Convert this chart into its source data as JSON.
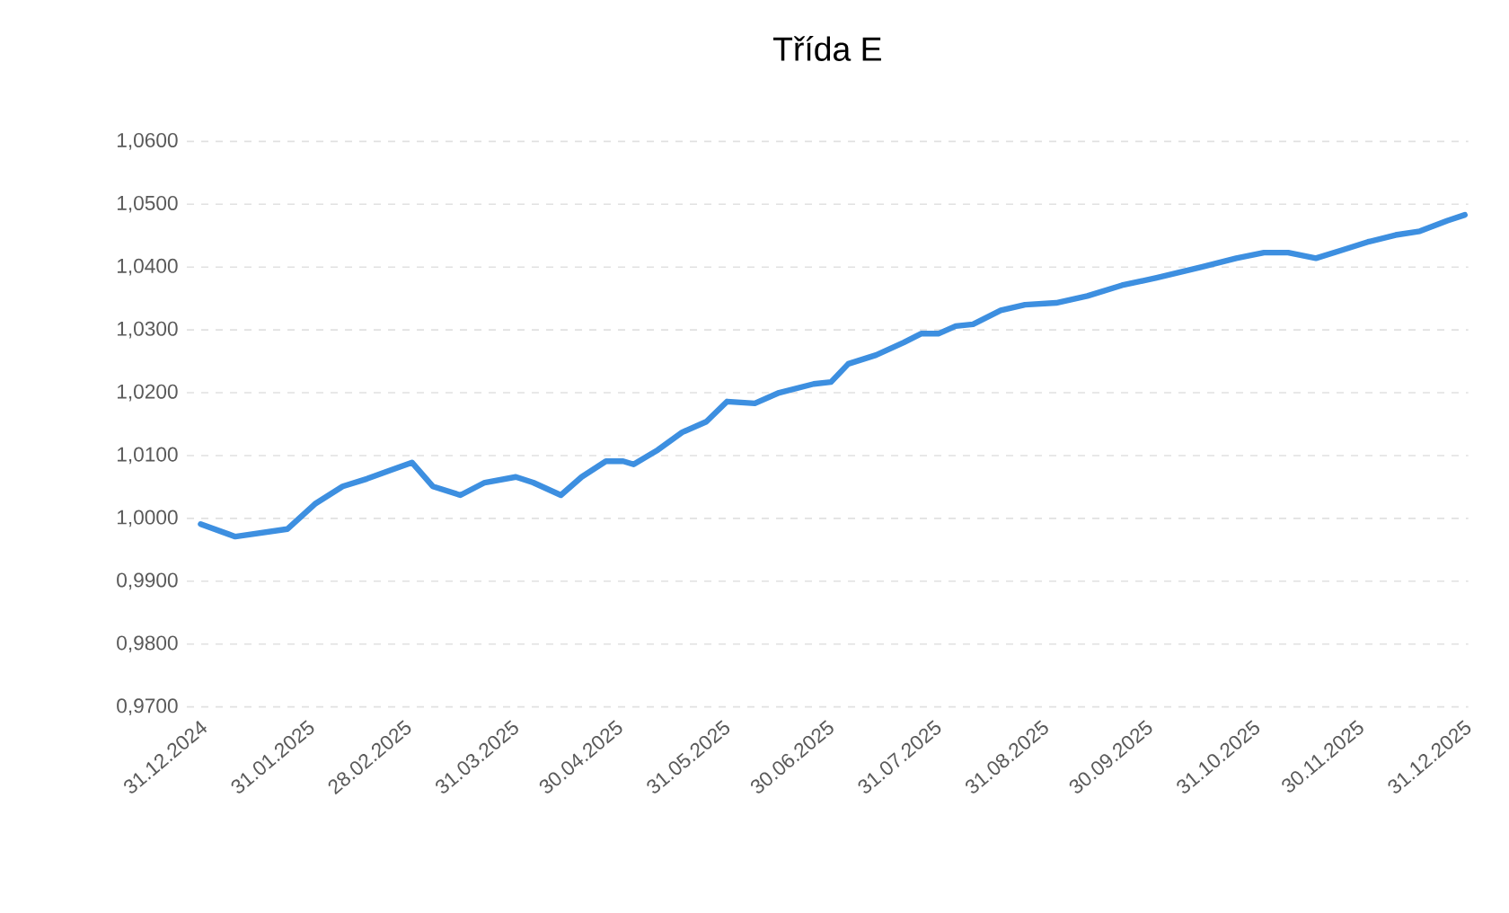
{
  "chart_data": {
    "type": "line",
    "title": "Třída E",
    "x": [
      "2024-12-31",
      "2025-01-10",
      "2025-01-25",
      "2025-02-02",
      "2025-02-10",
      "2025-02-17",
      "2025-02-24",
      "2025-03-02",
      "2025-03-08",
      "2025-03-16",
      "2025-03-23",
      "2025-04-01",
      "2025-04-06",
      "2025-04-14",
      "2025-04-20",
      "2025-04-27",
      "2025-05-02",
      "2025-05-05",
      "2025-05-12",
      "2025-05-19",
      "2025-05-26",
      "2025-06-01",
      "2025-06-09",
      "2025-06-16",
      "2025-06-26",
      "2025-07-01",
      "2025-07-06",
      "2025-07-14",
      "2025-07-22",
      "2025-07-27",
      "2025-08-01",
      "2025-08-06",
      "2025-08-11",
      "2025-08-19",
      "2025-08-26",
      "2025-09-04",
      "2025-09-13",
      "2025-09-23",
      "2025-10-03",
      "2025-10-16",
      "2025-10-26",
      "2025-11-03",
      "2025-11-10",
      "2025-11-18",
      "2025-11-25",
      "2025-12-03",
      "2025-12-11",
      "2025-12-18",
      "2025-12-26",
      "2025-12-31"
    ],
    "series": [
      {
        "color": "#3d8fe0",
        "values": [
          0.9991,
          0.9971,
          0.9983,
          1.0023,
          1.0051,
          1.0063,
          1.0077,
          1.0089,
          1.0051,
          1.0037,
          1.0057,
          1.0066,
          1.0057,
          1.0037,
          1.0066,
          1.0091,
          1.0091,
          1.0086,
          1.0109,
          1.0137,
          1.0154,
          1.0186,
          1.0183,
          1.02,
          1.0214,
          1.0217,
          1.0246,
          1.026,
          1.028,
          1.0294,
          1.0294,
          1.0306,
          1.0309,
          1.0331,
          1.034,
          1.0343,
          1.0354,
          1.0371,
          1.0383,
          1.04,
          1.0414,
          1.0423,
          1.0423,
          1.0414,
          1.0426,
          1.044,
          1.0451,
          1.0457,
          1.0474,
          1.0483
        ]
      }
    ],
    "xlim": [
      "2024-12-27",
      "2026-01-01"
    ],
    "xticks": [
      {
        "value": "2024-12-31",
        "label": "31.12.2024"
      },
      {
        "value": "2025-01-31",
        "label": "31.01.2025"
      },
      {
        "value": "2025-02-28",
        "label": "28.02.2025"
      },
      {
        "value": "2025-03-31",
        "label": "31.03.2025"
      },
      {
        "value": "2025-04-30",
        "label": "30.04.2025"
      },
      {
        "value": "2025-05-31",
        "label": "31.05.2025"
      },
      {
        "value": "2025-06-30",
        "label": "30.06.2025"
      },
      {
        "value": "2025-07-31",
        "label": "31.07.2025"
      },
      {
        "value": "2025-08-31",
        "label": "31.08.2025"
      },
      {
        "value": "2025-09-30",
        "label": "30.09.2025"
      },
      {
        "value": "2025-10-31",
        "label": "31.10.2025"
      },
      {
        "value": "2025-11-30",
        "label": "30.11.2025"
      },
      {
        "value": "2025-12-31",
        "label": "31.12.2025"
      }
    ],
    "ylim": [
      0.97,
      1.06
    ],
    "yticks": [
      {
        "value": 0.97,
        "label": "0,9700"
      },
      {
        "value": 0.98,
        "label": "0,9800"
      },
      {
        "value": 0.99,
        "label": "0,9900"
      },
      {
        "value": 1.0,
        "label": "1,0000"
      },
      {
        "value": 1.01,
        "label": "1,0100"
      },
      {
        "value": 1.02,
        "label": "1,0200"
      },
      {
        "value": 1.03,
        "label": "1,0300"
      },
      {
        "value": 1.04,
        "label": "1,0400"
      },
      {
        "value": 1.05,
        "label": "1,0500"
      },
      {
        "value": 1.06,
        "label": "1,0600"
      }
    ],
    "grid": "y",
    "marker": "none",
    "line_style": "solid"
  }
}
